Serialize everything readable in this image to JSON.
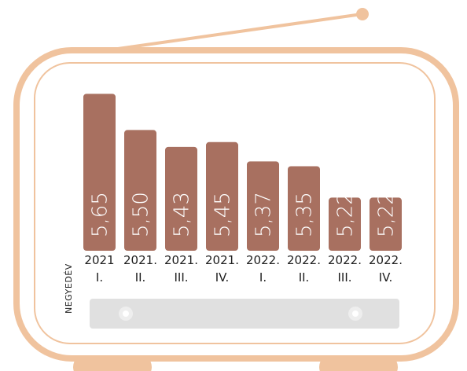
{
  "chart_data": {
    "type": "bar",
    "title": "",
    "xlabel": "NEGYEDÉV",
    "ylabel": "",
    "categories": [
      [
        "2021",
        "I."
      ],
      [
        "2021.",
        "II."
      ],
      [
        "2021.",
        "III."
      ],
      [
        "2021.",
        "IV."
      ],
      [
        "2022.",
        "I."
      ],
      [
        "2022.",
        "II."
      ],
      [
        "2022.",
        "III."
      ],
      [
        "2022.",
        "IV."
      ]
    ],
    "values": [
      5.65,
      5.5,
      5.43,
      5.45,
      5.37,
      5.35,
      5.22,
      5.22
    ],
    "value_labels": [
      "5,65",
      "5,50",
      "5,43",
      "5,45",
      "5,37",
      "5,35",
      "5,22",
      "5,22"
    ],
    "ylim": [
      5.0,
      5.7
    ],
    "grid": false,
    "legend": "none"
  },
  "colors": {
    "bar": "#a87060",
    "frame": "#f0c39e",
    "panel": "#e0e0e0",
    "text": "#1e1e1e"
  },
  "decoration": {
    "style": "retro-tv-frame",
    "icons": [
      "antenna-icon",
      "tv-feet-icon",
      "dial-knob-icon"
    ]
  }
}
